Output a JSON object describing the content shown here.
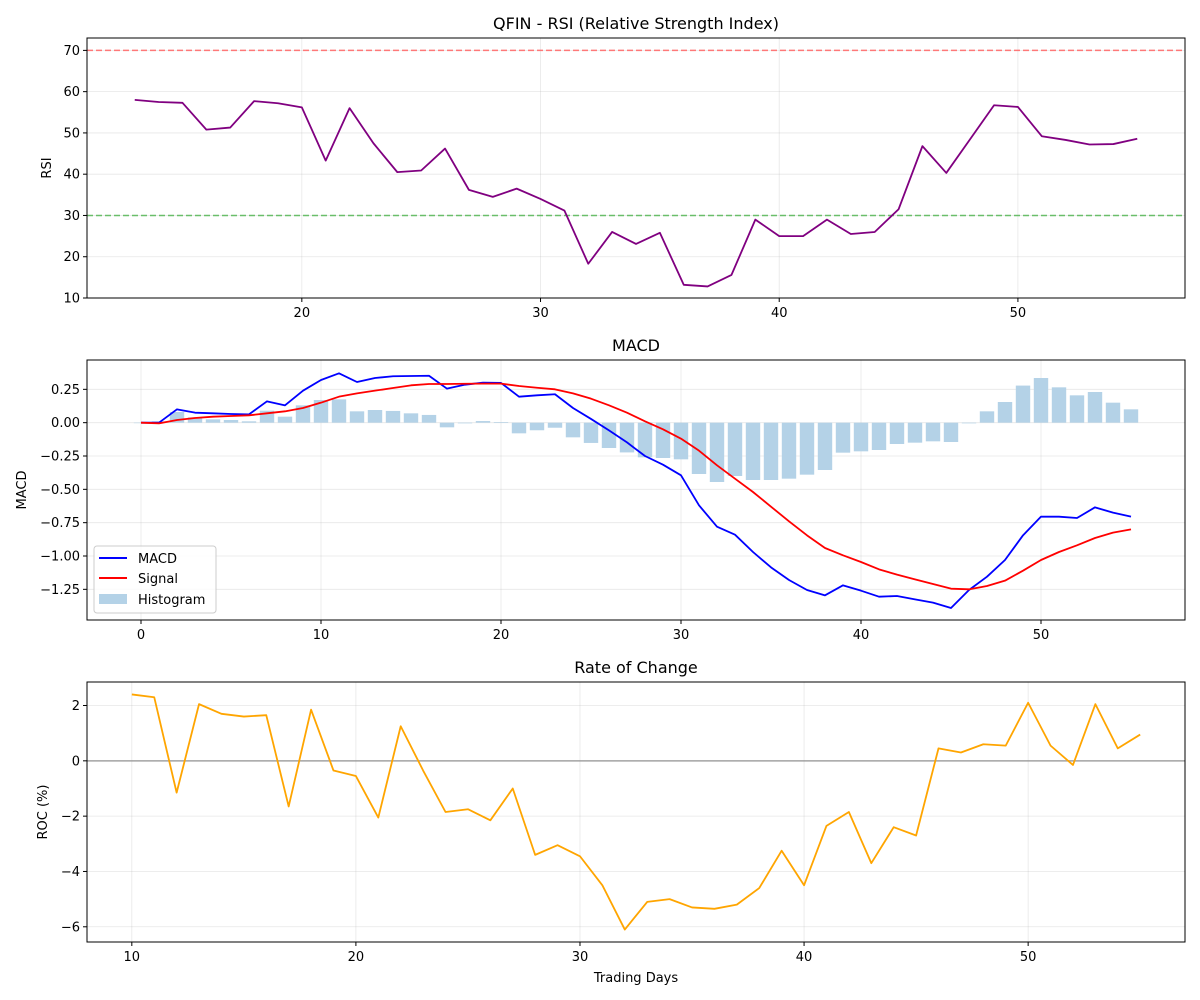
{
  "chart_data": [
    {
      "type": "line",
      "title": "QFIN - RSI (Relative Strength Index)",
      "xlabel": "",
      "ylabel": "RSI",
      "xlim": [
        11,
        57
      ],
      "ylim": [
        10,
        73
      ],
      "xticks": [
        20,
        30,
        40,
        50
      ],
      "yticks": [
        10,
        20,
        30,
        40,
        50,
        60,
        70
      ],
      "grid": true,
      "reference_lines": [
        {
          "y": 70,
          "color": "#ff6b6b",
          "style": "dashed"
        },
        {
          "y": 30,
          "color": "#5cb85c",
          "style": "dashed"
        }
      ],
      "series": [
        {
          "color": "#800080",
          "x": [
            13,
            14,
            15,
            16,
            17,
            18,
            19,
            20,
            21,
            22,
            23,
            24,
            25,
            26,
            27,
            28,
            29,
            30,
            31,
            32,
            33,
            34,
            35,
            36,
            37,
            38,
            39,
            40,
            41,
            42,
            43,
            44,
            45,
            46,
            47,
            48,
            49,
            50,
            51,
            52,
            53,
            54,
            55
          ],
          "values": [
            58,
            57.5,
            57.3,
            50.8,
            51.3,
            57.7,
            57.2,
            56.2,
            43.3,
            56,
            47.5,
            40.5,
            40.9,
            46.2,
            36.2,
            34.5,
            36.5,
            34,
            31.2,
            18.3,
            26,
            23.1,
            25.8,
            13.2,
            12.8,
            15.6,
            29,
            25,
            25,
            29,
            25.5,
            26,
            31.5,
            46.8,
            40.3,
            48.5,
            56.7,
            56.3,
            49.2,
            48.3,
            47.2,
            47.3,
            48.6
          ]
        }
      ]
    },
    {
      "type": "line",
      "title": "MACD",
      "xlabel": "",
      "ylabel": "MACD",
      "xlim": [
        -3,
        58
      ],
      "ylim": [
        -1.48,
        0.47
      ],
      "xticks": [
        0,
        10,
        20,
        30,
        40,
        50
      ],
      "yticks": [
        -1.25,
        -1.0,
        -0.75,
        -0.5,
        -0.25,
        0.0,
        0.25
      ],
      "grid": true,
      "legend": "lower-left",
      "x": [
        0,
        1,
        2,
        3,
        4,
        5,
        6,
        7,
        8,
        9,
        10,
        11,
        12,
        13,
        14,
        15,
        16,
        17,
        18,
        19,
        20,
        21,
        22,
        23,
        24,
        25,
        26,
        27,
        28,
        29,
        30,
        31,
        32,
        33,
        34,
        35,
        36,
        37,
        38,
        39,
        40,
        41,
        42,
        43,
        44,
        45,
        46,
        47,
        48,
        49,
        50,
        51,
        52,
        53,
        54,
        55
      ],
      "series": [
        {
          "name": "MACD",
          "color": "#0000ff",
          "kind": "line",
          "values": [
            0,
            0,
            0.1,
            0.075,
            0.07,
            0.065,
            0.062,
            0.16,
            0.13,
            0.24,
            0.32,
            0.37,
            0.305,
            0.335,
            0.348,
            0.35,
            0.352,
            0.255,
            0.285,
            0.3,
            0.298,
            0.195,
            0.205,
            0.213,
            0.11,
            0.028,
            -0.058,
            -0.148,
            -0.25,
            -0.315,
            -0.395,
            -0.62,
            -0.78,
            -0.84,
            -0.97,
            -1.085,
            -1.18,
            -1.255,
            -1.295,
            -1.22,
            -1.26,
            -1.305,
            -1.3,
            -1.325,
            -1.35,
            -1.39,
            -1.255,
            -1.155,
            -1.03,
            -0.845,
            -0.705,
            -0.705,
            -0.715,
            -0.635,
            -0.675,
            -0.705
          ]
        },
        {
          "name": "Signal",
          "color": "#ff0000",
          "kind": "line",
          "values": [
            0,
            -0.005,
            0.02,
            0.035,
            0.045,
            0.05,
            0.055,
            0.07,
            0.085,
            0.11,
            0.15,
            0.195,
            0.22,
            0.24,
            0.26,
            0.28,
            0.29,
            0.29,
            0.292,
            0.293,
            0.293,
            0.275,
            0.262,
            0.25,
            0.22,
            0.18,
            0.13,
            0.075,
            0.01,
            -0.05,
            -0.12,
            -0.21,
            -0.32,
            -0.42,
            -0.52,
            -0.63,
            -0.74,
            -0.845,
            -0.94,
            -0.995,
            -1.045,
            -1.1,
            -1.14,
            -1.175,
            -1.21,
            -1.245,
            -1.25,
            -1.225,
            -1.185,
            -1.11,
            -1.03,
            -0.97,
            -0.92,
            -0.865,
            -0.825,
            -0.8
          ]
        },
        {
          "name": "Histogram",
          "color": "#b4d2e7",
          "kind": "bar",
          "values": [
            0,
            0.01,
            0.08,
            0.04,
            0.025,
            0.02,
            0.01,
            0.09,
            0.045,
            0.13,
            0.17,
            0.175,
            0.085,
            0.095,
            0.088,
            0.07,
            0.058,
            -0.035,
            -0.005,
            0.012,
            0.005,
            -0.08,
            -0.057,
            -0.038,
            -0.11,
            -0.152,
            -0.19,
            -0.223,
            -0.26,
            -0.265,
            -0.275,
            -0.385,
            -0.445,
            -0.4,
            -0.43,
            -0.43,
            -0.42,
            -0.39,
            -0.355,
            -0.225,
            -0.215,
            -0.205,
            -0.16,
            -0.15,
            -0.14,
            -0.145,
            -0.005,
            0.085,
            0.155,
            0.278,
            0.335,
            0.265,
            0.205,
            0.23,
            0.15,
            0.1
          ]
        }
      ]
    },
    {
      "type": "line",
      "title": "Rate of Change",
      "xlabel": "Trading Days",
      "ylabel": "ROC (%)",
      "xlim": [
        8,
        57
      ],
      "ylim": [
        -6.55,
        2.85
      ],
      "xticks": [
        10,
        20,
        30,
        40,
        50
      ],
      "yticks": [
        -6,
        -4,
        -2,
        0,
        2
      ],
      "grid": true,
      "reference_lines": [
        {
          "y": 0,
          "color": "#9a9a9a",
          "style": "solid"
        }
      ],
      "series": [
        {
          "color": "#ffa500",
          "x": [
            10,
            11,
            12,
            13,
            14,
            15,
            16,
            17,
            18,
            19,
            20,
            21,
            22,
            23,
            24,
            25,
            26,
            27,
            28,
            29,
            30,
            31,
            32,
            33,
            34,
            35,
            36,
            37,
            38,
            39,
            40,
            41,
            42,
            43,
            44,
            45,
            46,
            47,
            48,
            49,
            50,
            51,
            52,
            53,
            54,
            55
          ],
          "values": [
            2.4,
            2.3,
            -1.15,
            2.05,
            1.7,
            1.6,
            1.65,
            -1.65,
            1.85,
            -0.35,
            -0.55,
            -2.05,
            1.25,
            -0.35,
            -1.85,
            -1.75,
            -2.15,
            -1.0,
            -3.4,
            -3.05,
            -3.45,
            -4.5,
            -6.1,
            -5.1,
            -5.0,
            -5.3,
            -5.35,
            -5.2,
            -4.6,
            -3.25,
            -4.5,
            -2.35,
            -1.85,
            -3.7,
            -2.4,
            -2.7,
            0.45,
            0.3,
            0.6,
            0.55,
            2.1,
            0.55,
            -0.15,
            2.05,
            0.45,
            0.95
          ]
        }
      ]
    }
  ]
}
